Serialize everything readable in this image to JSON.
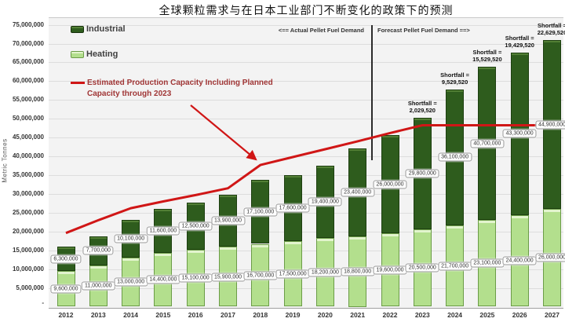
{
  "title": "全球颗粒需求与在日本工业部门不断变化的政策下的预测",
  "y_axis": {
    "title": "Metric Tonnes",
    "zero_label": "-"
  },
  "legend": {
    "industrial": "Industrial",
    "heating": "Heating",
    "capacity_line1": "Estimated Production Capacity Including Planned",
    "capacity_line2": "Capacity through 2023"
  },
  "annotations": {
    "actual": "<== Actual Pellet Fuel Demand",
    "forecast": "Forecast Pellet Fuel Demand ==>",
    "shortfall_prefix": "Shortfall ="
  },
  "colors": {
    "industrial": "#2e5c1d",
    "heating": "#b3df8d",
    "capacity_line": "#d01616",
    "legend_red_text": "#a03636"
  },
  "chart_data": {
    "type": "bar",
    "stacked": true,
    "title": "全球颗粒需求与在日本工业部门不断变化的政策下的预测",
    "ylabel": "Metric Tonnes",
    "ylim": [
      0,
      77000000
    ],
    "ytick_step": 5000000,
    "ytick_max": 75000000,
    "grid": true,
    "legend_position": "top-left inside",
    "categories": [
      2012,
      2013,
      2014,
      2015,
      2016,
      2017,
      2018,
      2019,
      2020,
      2021,
      2022,
      2023,
      2024,
      2025,
      2026,
      2027
    ],
    "series": [
      {
        "name": "Heating",
        "color": "#b3df8d",
        "values": [
          9600000,
          11000000,
          13000000,
          14400000,
          15100000,
          15900000,
          16700000,
          17500000,
          18200000,
          18800000,
          19600000,
          20500000,
          21700000,
          23100000,
          24400000,
          26000000
        ]
      },
      {
        "name": "Industrial",
        "color": "#2e5c1d",
        "values": [
          6300000,
          7700000,
          10100000,
          11600000,
          12500000,
          13900000,
          17100000,
          17600000,
          19400000,
          23400000,
          26000000,
          29800000,
          36100000,
          40700000,
          43300000,
          44900000
        ]
      }
    ],
    "capacity_line": {
      "name": "Estimated Production Capacity Including Planned Capacity through 2023",
      "color": "#d01616",
      "values_estimated": [
        19600000,
        23000000,
        26200000,
        28000000,
        29700000,
        31500000,
        37700000,
        39800000,
        41900000,
        44000000,
        46200000,
        48270480,
        48270480,
        48270480,
        48270480,
        48270480
      ]
    },
    "shortfalls": [
      {
        "year": 2023,
        "value": 2029520
      },
      {
        "year": 2024,
        "value": 9529520
      },
      {
        "year": 2025,
        "value": 15529520
      },
      {
        "year": 2026,
        "value": 19429520
      },
      {
        "year": 2027,
        "value": 22629520
      }
    ],
    "divider_between_years": [
      2021,
      2022
    ]
  }
}
